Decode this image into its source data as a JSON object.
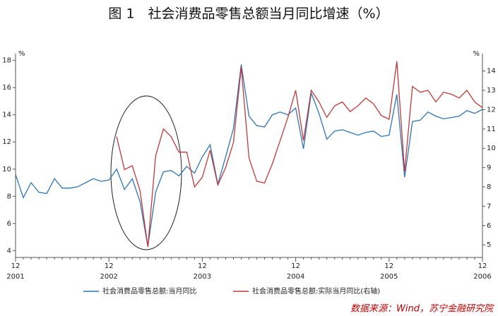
{
  "chart_data": {
    "type": "line",
    "title": "图 1　社会消费品零售总额当月同比增速（%）",
    "y_unit": "%",
    "y2_unit": "%",
    "categories": [
      "12",
      null,
      null,
      null,
      null,
      null,
      null,
      null,
      null,
      null,
      null,
      null,
      "12",
      null,
      null,
      null,
      null,
      null,
      null,
      null,
      null,
      null,
      null,
      null,
      "12",
      null,
      null,
      null,
      null,
      null,
      null,
      null,
      null,
      null,
      null,
      null,
      "12",
      null,
      null,
      null,
      null,
      null,
      null,
      null,
      null,
      null,
      null,
      null,
      "12",
      null,
      null,
      null,
      null,
      null,
      null,
      null,
      null,
      null,
      null,
      null,
      "12"
    ],
    "category_years": [
      "2001",
      "2002",
      "2003",
      "2004",
      "2005",
      "2006"
    ],
    "series": [
      {
        "name": "社会消费品零售总额:当月同比",
        "color": "#2e75b6",
        "values": [
          9.6,
          7.9,
          9.0,
          8.3,
          8.2,
          9.3,
          8.6,
          8.6,
          8.7,
          9.0,
          9.3,
          9.1,
          9.2,
          10.0,
          8.5,
          9.3,
          7.6,
          4.3,
          8.3,
          9.8,
          9.9,
          9.5,
          10.2,
          9.7,
          10.9,
          11.8,
          8.9,
          10.9,
          13.0,
          17.7,
          13.9,
          13.2,
          13.1,
          14.0,
          14.2,
          14.0,
          14.5,
          11.5,
          15.6,
          14.1,
          12.2,
          12.8,
          12.9,
          12.7,
          12.5,
          12.7,
          12.8,
          12.4,
          12.5,
          15.5,
          9.4,
          13.5,
          13.6,
          14.2,
          13.9,
          13.7,
          13.8,
          13.9,
          14.3,
          14.1,
          14.4
        ]
      },
      {
        "name": "社会消费品零售总额:实际当月同比(右轴)",
        "color": "#c0393b",
        "axis": "y2",
        "values": [
          null,
          null,
          null,
          null,
          null,
          null,
          null,
          null,
          null,
          null,
          null,
          null,
          null,
          10.6,
          8.9,
          9.1,
          7.8,
          4.9,
          9.6,
          11.0,
          10.6,
          9.8,
          9.8,
          8.0,
          8.5,
          9.9,
          8.1,
          9.0,
          10.3,
          14.2,
          9.5,
          8.3,
          8.2,
          9.2,
          10.4,
          11.6,
          13.0,
          10.4,
          13.0,
          12.4,
          11.6,
          12.2,
          12.4,
          11.9,
          12.2,
          12.6,
          12.3,
          11.7,
          11.5,
          14.5,
          8.8,
          13.2,
          12.9,
          13.0,
          12.4,
          12.9,
          12.8,
          12.6,
          13.0,
          12.4,
          12.1
        ]
      }
    ],
    "ylim": [
      3.5,
      18.5
    ],
    "yticks": [
      4,
      6,
      8,
      10,
      12,
      14,
      16,
      18
    ],
    "y2lim": [
      4.35,
      14.9
    ],
    "y2ticks": [
      5,
      6,
      7,
      8,
      9,
      10,
      11,
      12,
      13,
      14
    ],
    "source": "数据来源：Wind，苏宁金融研究院"
  }
}
